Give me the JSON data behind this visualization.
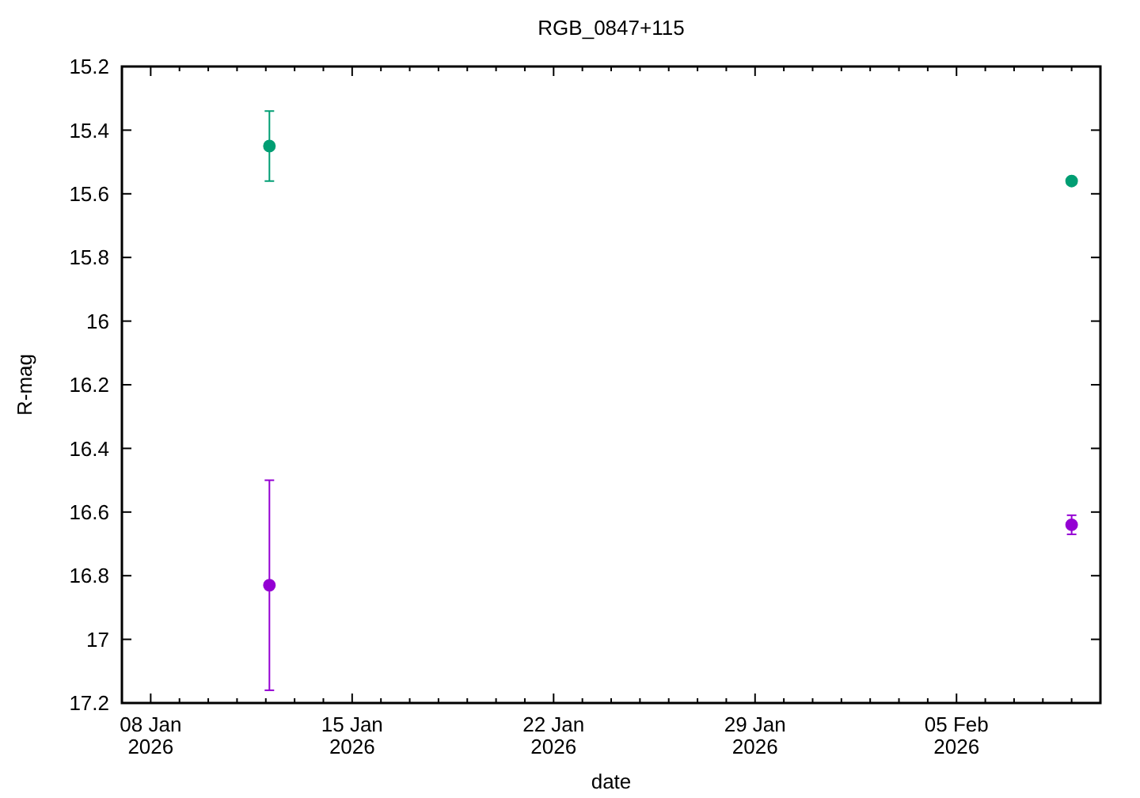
{
  "chart_data": {
    "type": "scatter",
    "title": "RGB_0847+115",
    "xlabel": "date",
    "ylabel": "R-mag",
    "xlim": [
      "2026-01-07",
      "2026-02-10"
    ],
    "ylim": [
      17.2,
      15.2
    ],
    "xticks": [
      {
        "value": "2026-01-07",
        "label": null
      },
      {
        "value": "2026-01-08",
        "label": "08 Jan\n2026"
      },
      {
        "value": "2026-01-09",
        "label": null
      },
      {
        "value": "2026-01-10",
        "label": null
      },
      {
        "value": "2026-01-11",
        "label": null
      },
      {
        "value": "2026-01-12",
        "label": null
      },
      {
        "value": "2026-01-13",
        "label": null
      },
      {
        "value": "2026-01-14",
        "label": null
      },
      {
        "value": "2026-01-15",
        "label": "15 Jan\n2026"
      },
      {
        "value": "2026-01-16",
        "label": null
      },
      {
        "value": "2026-01-17",
        "label": null
      },
      {
        "value": "2026-01-18",
        "label": null
      },
      {
        "value": "2026-01-19",
        "label": null
      },
      {
        "value": "2026-01-20",
        "label": null
      },
      {
        "value": "2026-01-21",
        "label": null
      },
      {
        "value": "2026-01-22",
        "label": "22 Jan\n2026"
      },
      {
        "value": "2026-01-23",
        "label": null
      },
      {
        "value": "2026-01-24",
        "label": null
      },
      {
        "value": "2026-01-25",
        "label": null
      },
      {
        "value": "2026-01-26",
        "label": null
      },
      {
        "value": "2026-01-27",
        "label": null
      },
      {
        "value": "2026-01-28",
        "label": null
      },
      {
        "value": "2026-01-29",
        "label": "29 Jan\n2026"
      },
      {
        "value": "2026-01-30",
        "label": null
      },
      {
        "value": "2026-01-31",
        "label": null
      },
      {
        "value": "2026-02-01",
        "label": null
      },
      {
        "value": "2026-02-02",
        "label": null
      },
      {
        "value": "2026-02-03",
        "label": null
      },
      {
        "value": "2026-02-04",
        "label": null
      },
      {
        "value": "2026-02-05",
        "label": "05 Feb\n2026"
      },
      {
        "value": "2026-02-06",
        "label": null
      },
      {
        "value": "2026-02-07",
        "label": null
      },
      {
        "value": "2026-02-08",
        "label": null
      },
      {
        "value": "2026-02-09",
        "label": null
      }
    ],
    "yticks": [
      15.2,
      15.4,
      15.6,
      15.8,
      16,
      16.2,
      16.4,
      16.6,
      16.8,
      17,
      17.2
    ],
    "grid": false,
    "marker": "circle",
    "series": [
      {
        "color": "#009e73",
        "x": [
          "2026-01-12T03:00",
          "2026-02-09T00:00"
        ],
        "values": [
          15.45,
          15.56
        ],
        "errors": [
          0.11,
          0.01
        ]
      },
      {
        "color": "#9400d3",
        "x": [
          "2026-01-12T03:00",
          "2026-02-09T00:00"
        ],
        "values": [
          16.83,
          16.64
        ],
        "errors": [
          0.33,
          0.03
        ]
      }
    ]
  }
}
